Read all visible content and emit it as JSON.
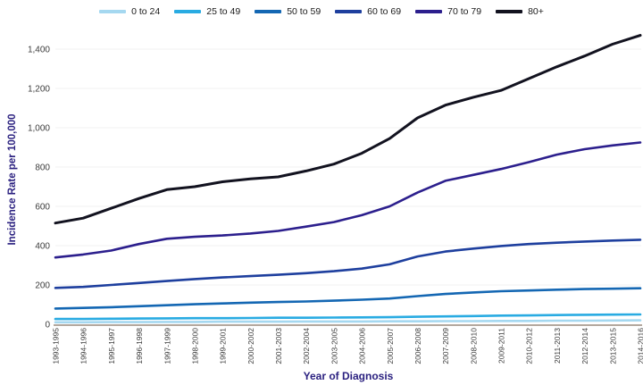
{
  "chart_data": {
    "type": "line",
    "title": "",
    "xlabel": "Year of Diagnosis",
    "ylabel": "Incidence Rate per 100,000",
    "ylim": [
      0,
      1400
    ],
    "ytick_step": 200,
    "ytick_labels": [
      "0",
      "200",
      "400",
      "600",
      "800",
      "1,000",
      "1,200",
      "1,400"
    ],
    "grid": "horizontal",
    "legend_position": "top",
    "categories": [
      "1993-1995",
      "1994-1996",
      "1995-1997",
      "1996-1998",
      "1997-1999",
      "1998-2000",
      "1999-2001",
      "2000-2002",
      "2001-2003",
      "2002-2004",
      "2003-2005",
      "2004-2006",
      "2005-2007",
      "2006-2008",
      "2007-2009",
      "2008-2010",
      "2009-2011",
      "2010-2012",
      "2011-2013",
      "2012-2014",
      "2013-2015",
      "2014-2016"
    ],
    "series": [
      {
        "name": "0 to 24",
        "color": "#a5d8f0",
        "values": [
          10,
          10,
          11,
          11,
          12,
          12,
          13,
          13,
          13,
          14,
          14,
          14,
          15,
          15,
          16,
          16,
          17,
          17,
          18,
          18,
          19,
          20
        ]
      },
      {
        "name": "25 to 49",
        "color": "#29abe2",
        "values": [
          27,
          27,
          28,
          29,
          30,
          31,
          31,
          32,
          33,
          33,
          34,
          35,
          36,
          38,
          40,
          42,
          44,
          45,
          47,
          48,
          49,
          50
        ]
      },
      {
        "name": "50 to 59",
        "color": "#1467b3",
        "values": [
          80,
          83,
          87,
          92,
          97,
          102,
          106,
          110,
          113,
          116,
          120,
          125,
          131,
          143,
          154,
          162,
          168,
          172,
          176,
          179,
          181,
          183
        ]
      },
      {
        "name": "60 to 69",
        "color": "#1e3f9e",
        "values": [
          185,
          190,
          200,
          210,
          220,
          230,
          238,
          245,
          252,
          260,
          270,
          283,
          305,
          345,
          370,
          385,
          398,
          408,
          415,
          421,
          426,
          430
        ]
      },
      {
        "name": "70 to 79",
        "color": "#2c1f8d",
        "values": [
          340,
          355,
          375,
          408,
          435,
          445,
          452,
          462,
          475,
          497,
          520,
          555,
          600,
          670,
          730,
          760,
          790,
          825,
          863,
          891,
          910,
          925
        ]
      },
      {
        "name": "80+",
        "color": "#12121f",
        "values": [
          515,
          540,
          590,
          640,
          685,
          700,
          725,
          740,
          750,
          780,
          815,
          870,
          945,
          1050,
          1115,
          1155,
          1190,
          1250,
          1310,
          1365,
          1425,
          1470
        ]
      }
    ]
  },
  "colors": {
    "axis_title": "#2b2180",
    "tick_label": "#3c3c3c",
    "gridline": "#f0f0f0",
    "axis_line": "#b3a89e",
    "background": "#ffffff"
  }
}
